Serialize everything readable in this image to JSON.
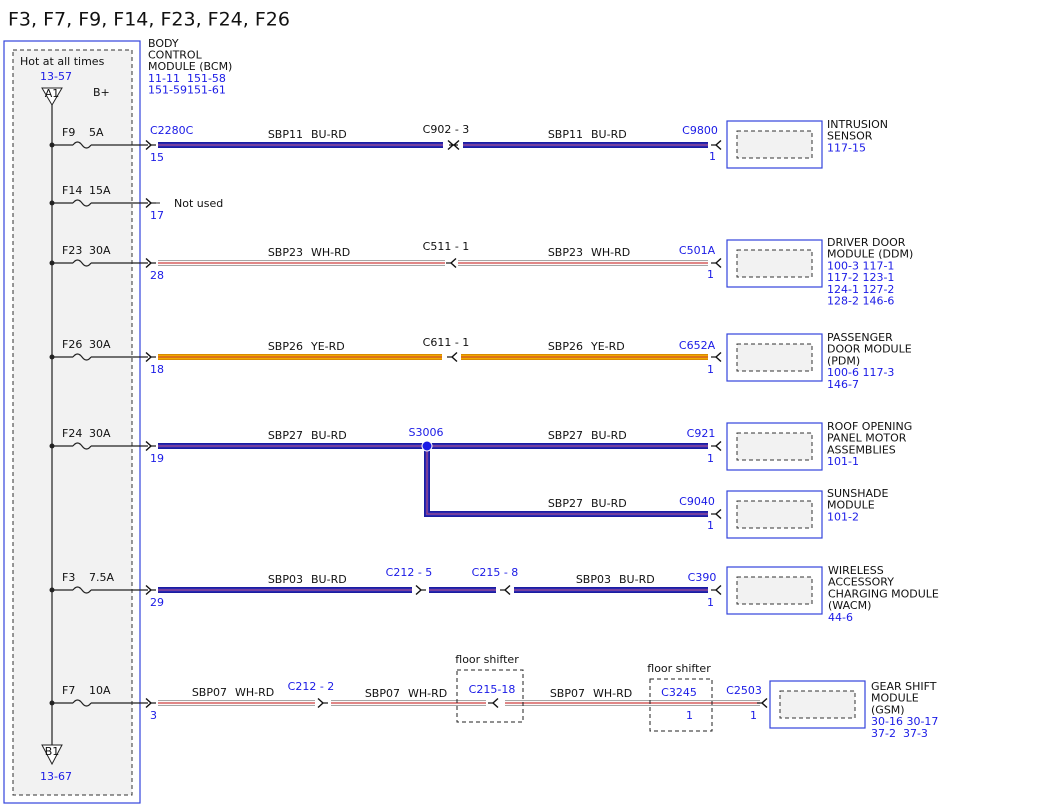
{
  "title": "F3, F7, F9, F14, F23, F24, F26",
  "module": {
    "name": [
      "BODY",
      "CONTROL",
      "MODULE (BCM)"
    ],
    "refs": [
      "11-11  151-58",
      "151-59151-61"
    ]
  },
  "bus": {
    "label": "Hot at all times",
    "ref": "13-57",
    "top_node": "A1",
    "voltage": "B+",
    "bottom_node": "B1",
    "bottom_ref": "13-67"
  },
  "circuits": [
    {
      "fuse": "F9",
      "rating": "5A",
      "pin": "15",
      "start_connector": "C2280C",
      "wires": [
        {
          "circuit": "SBP11",
          "color": "BU-RD"
        },
        {
          "circuit": "SBP11",
          "color": "BU-RD"
        }
      ],
      "inline": [
        "C902 - 3"
      ],
      "end_connector": "C9800",
      "end_pin": "1",
      "device": [
        "INTRUSION",
        "SENSOR"
      ],
      "refs": [
        "117-15"
      ]
    },
    {
      "fuse": "F14",
      "rating": "15A",
      "pin": "17",
      "note": "Not used"
    },
    {
      "fuse": "F23",
      "rating": "30A",
      "pin": "28",
      "wires": [
        {
          "circuit": "SBP23",
          "color": "WH-RD"
        },
        {
          "circuit": "SBP23",
          "color": "WH-RD"
        }
      ],
      "inline": [
        "C511 - 1"
      ],
      "end_connector": "C501A",
      "end_pin": "1",
      "device": [
        "DRIVER DOOR",
        "MODULE (DDM)"
      ],
      "refs": [
        "100-3 117-1",
        "117-2 123-1",
        "124-1 127-2",
        "128-2 146-6"
      ]
    },
    {
      "fuse": "F26",
      "rating": "30A",
      "pin": "18",
      "wires": [
        {
          "circuit": "SBP26",
          "color": "YE-RD"
        },
        {
          "circuit": "SBP26",
          "color": "YE-RD"
        }
      ],
      "inline": [
        "C611 - 1"
      ],
      "end_connector": "C652A",
      "end_pin": "1",
      "device": [
        "PASSENGER",
        "DOOR MODULE",
        "(PDM)"
      ],
      "refs": [
        "100-6 117-3",
        "146-7"
      ]
    },
    {
      "fuse": "F24",
      "rating": "30A",
      "pin": "19",
      "wires": [
        {
          "circuit": "SBP27",
          "color": "BU-RD"
        },
        {
          "circuit": "SBP27",
          "color": "BU-RD"
        }
      ],
      "splice": "S3006",
      "end_connector": "C921",
      "end_pin": "1",
      "device": [
        "ROOF OPENING",
        "PANEL MOTOR",
        "ASSEMBLIES"
      ],
      "refs": [
        "101-1"
      ],
      "branch": {
        "wire": {
          "circuit": "SBP27",
          "color": "BU-RD"
        },
        "end_connector": "C9040",
        "end_pin": "1",
        "device": [
          "SUNSHADE",
          "MODULE"
        ],
        "refs": [
          "101-2"
        ]
      }
    },
    {
      "fuse": "F3",
      "rating": "7.5A",
      "pin": "29",
      "wires": [
        {
          "circuit": "SBP03",
          "color": "BU-RD"
        },
        {
          "circuit": "SBP03",
          "color": "BU-RD"
        }
      ],
      "inline": [
        "C212 - 5",
        "C215 - 8"
      ],
      "end_connector": "C390",
      "end_pin": "1",
      "device": [
        "WIRELESS",
        "ACCESSORY",
        "CHARGING MODULE",
        "(WACM)"
      ],
      "refs": [
        "44-6"
      ]
    },
    {
      "fuse": "F7",
      "rating": "10A",
      "pin": "3",
      "wires": [
        {
          "circuit": "SBP07",
          "color": "WH-RD"
        },
        {
          "circuit": "SBP07",
          "color": "WH-RD"
        },
        {
          "circuit": "SBP07",
          "color": "WH-RD"
        }
      ],
      "inline": [
        "C212 - 2"
      ],
      "floor_connectors": [
        {
          "note": "floor shifter",
          "connector": "C215-18"
        },
        {
          "note": "floor shifter",
          "connector": "C3245",
          "pin": "1"
        }
      ],
      "end_connector": "C2503",
      "end_pin": "1",
      "device": [
        "GEAR SHIFT",
        "MODULE",
        "(GSM)"
      ],
      "refs": [
        "30-16 30-17",
        "37-2  37-3"
      ]
    }
  ]
}
